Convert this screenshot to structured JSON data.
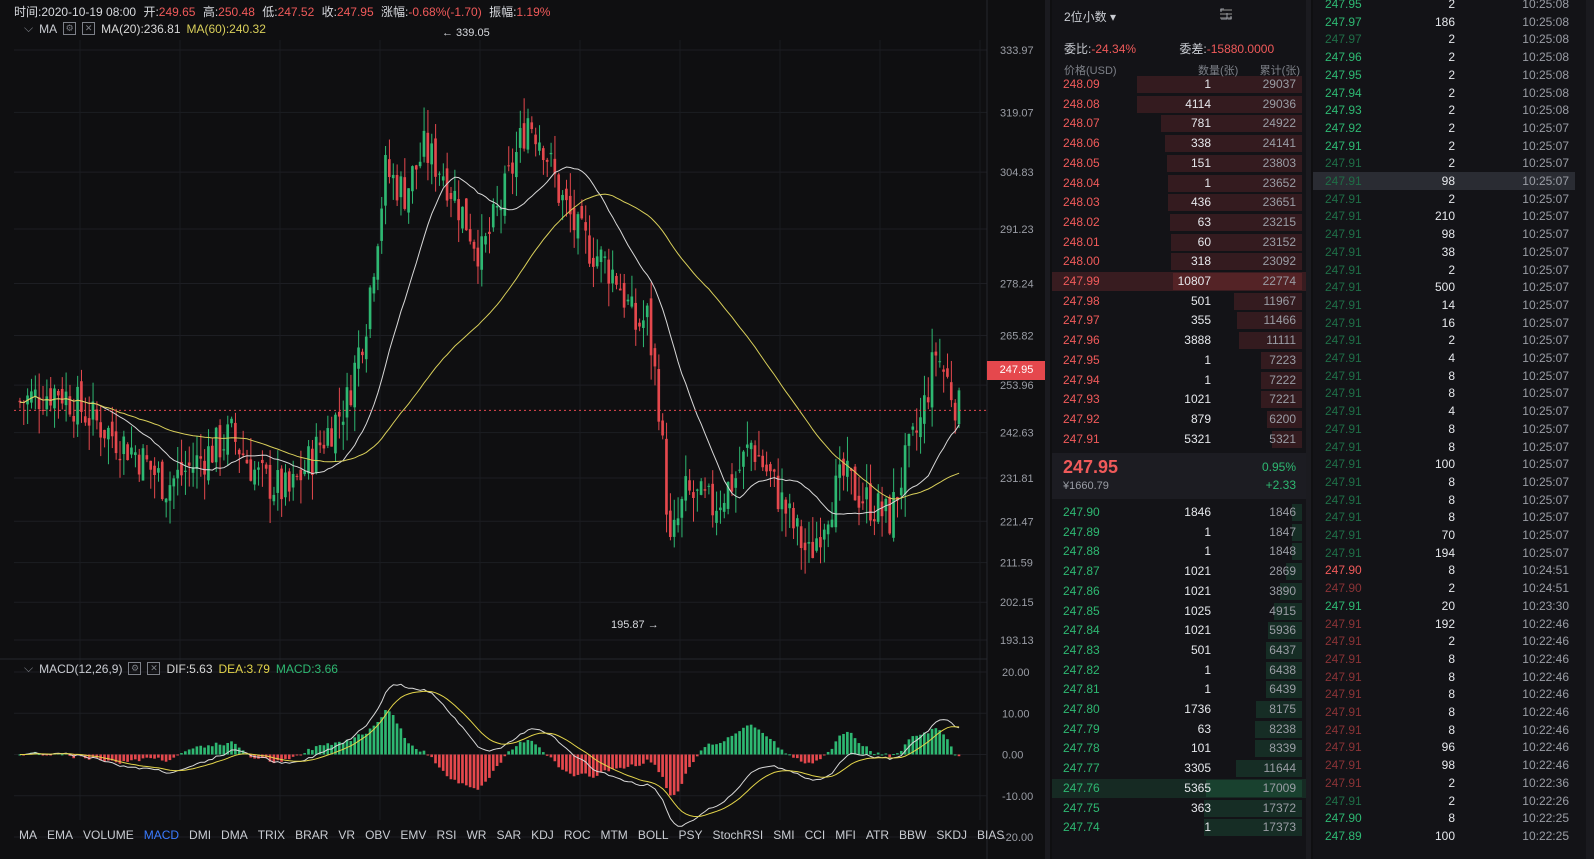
{
  "info": {
    "time_label": "时间:",
    "time": "2020-10-19 08:00",
    "open_label": "开:",
    "open": "249.65",
    "high_label": "高:",
    "high": "250.48",
    "low_label": "低:",
    "low": "247.52",
    "close_label": "收:",
    "close": "247.95",
    "change_label": "涨幅:",
    "change": "-0.68%(-1.70)",
    "amp_label": "振幅:",
    "amp": "1.19%"
  },
  "ma": {
    "label": "MA",
    "ma20": "MA(20):236.81",
    "ma60": "MA(60):240.32"
  },
  "macd": {
    "label": "MACD(12,26,9)",
    "dif": "DIF:5.63",
    "dea": "DEA:3.79",
    "macd": "MACD:3.66"
  },
  "price_axis": [
    "333.97",
    "319.07",
    "304.83",
    "291.23",
    "278.24",
    "265.82",
    "253.96",
    "242.63",
    "231.81",
    "221.47",
    "211.59",
    "202.15",
    "193.13"
  ],
  "macd_axis": [
    "20.00",
    "10.00",
    "0.00",
    "-10.00",
    "-20.00"
  ],
  "current_price_tag": "247.95",
  "annotations": {
    "high": "← 339.05",
    "low": "195.87 →"
  },
  "indicator_tabs": [
    "MA",
    "EMA",
    "VOLUME",
    "MACD",
    "DMI",
    "DMA",
    "TRIX",
    "BRAR",
    "VR",
    "OBV",
    "EMV",
    "RSI",
    "WR",
    "SAR",
    "KDJ",
    "ROC",
    "MTM",
    "BOLL",
    "PSY",
    "StochRSI",
    "SMI",
    "CCI",
    "MFI",
    "ATR",
    "BBW",
    "SKDJ",
    "BIAS"
  ],
  "active_tab": "MACD",
  "colors": {
    "up": "#2eb872",
    "down": "#e5484d",
    "ma20": "#d8d8d8",
    "ma60": "#d9cf5a",
    "dea": "#e3d44a",
    "accent": "#3a7bff"
  },
  "chart_data": {
    "type": "candlestick",
    "title": "",
    "y_range": [
      193.13,
      340
    ],
    "high_mark": 339.05,
    "low_mark": 195.87,
    "last": 247.95,
    "ma20_last": 236.81,
    "ma60_last": 240.32,
    "macd_range": [
      -20,
      20
    ],
    "dif_last": 5.63,
    "dea_last": 3.79,
    "macd_last": 3.66
  },
  "orderbook": {
    "decimals": "2位小数",
    "ratio_label": "委比:",
    "ratio": "-24.34%",
    "diff_label": "委差:",
    "diff": "-15880.0000",
    "col_price": "价格(USD)",
    "col_qty": "数量(张)",
    "col_cum": "累计(张)",
    "asks": [
      {
        "p": "248.09",
        "q": "1",
        "c": "29037"
      },
      {
        "p": "248.08",
        "q": "4114",
        "c": "29036"
      },
      {
        "p": "248.07",
        "q": "781",
        "c": "24922"
      },
      {
        "p": "248.06",
        "q": "338",
        "c": "24141"
      },
      {
        "p": "248.05",
        "q": "151",
        "c": "23803"
      },
      {
        "p": "248.04",
        "q": "1",
        "c": "23652"
      },
      {
        "p": "248.03",
        "q": "436",
        "c": "23651"
      },
      {
        "p": "248.02",
        "q": "63",
        "c": "23215"
      },
      {
        "p": "248.01",
        "q": "60",
        "c": "23152"
      },
      {
        "p": "248.00",
        "q": "318",
        "c": "23092"
      },
      {
        "p": "247.99",
        "q": "10807",
        "c": "22774"
      },
      {
        "p": "247.98",
        "q": "501",
        "c": "11967"
      },
      {
        "p": "247.97",
        "q": "355",
        "c": "11466"
      },
      {
        "p": "247.96",
        "q": "3888",
        "c": "11111"
      },
      {
        "p": "247.95",
        "q": "1",
        "c": "7223"
      },
      {
        "p": "247.94",
        "q": "1",
        "c": "7222"
      },
      {
        "p": "247.93",
        "q": "1021",
        "c": "7221"
      },
      {
        "p": "247.92",
        "q": "879",
        "c": "6200"
      },
      {
        "p": "247.91",
        "q": "5321",
        "c": "5321"
      }
    ],
    "last_price": "247.95",
    "last_cny": "¥1660.79",
    "last_pct": "0.95%",
    "last_chg": "+2.33",
    "bids": [
      {
        "p": "247.90",
        "q": "1846",
        "c": "1846"
      },
      {
        "p": "247.89",
        "q": "1",
        "c": "1847"
      },
      {
        "p": "247.88",
        "q": "1",
        "c": "1848"
      },
      {
        "p": "247.87",
        "q": "1021",
        "c": "2869"
      },
      {
        "p": "247.86",
        "q": "1021",
        "c": "3890"
      },
      {
        "p": "247.85",
        "q": "1025",
        "c": "4915"
      },
      {
        "p": "247.84",
        "q": "1021",
        "c": "5936"
      },
      {
        "p": "247.83",
        "q": "501",
        "c": "6437"
      },
      {
        "p": "247.82",
        "q": "1",
        "c": "6438"
      },
      {
        "p": "247.81",
        "q": "1",
        "c": "6439"
      },
      {
        "p": "247.80",
        "q": "1736",
        "c": "8175"
      },
      {
        "p": "247.79",
        "q": "63",
        "c": "8238"
      },
      {
        "p": "247.78",
        "q": "101",
        "c": "8339"
      },
      {
        "p": "247.77",
        "q": "3305",
        "c": "11644"
      },
      {
        "p": "247.76",
        "q": "5365",
        "c": "17009"
      },
      {
        "p": "247.75",
        "q": "363",
        "c": "17372"
      },
      {
        "p": "247.74",
        "q": "1",
        "c": "17373"
      }
    ]
  },
  "trades": [
    {
      "p": "247.95",
      "q": "2",
      "t": "10:25:08",
      "s": "buy"
    },
    {
      "p": "247.97",
      "q": "186",
      "t": "10:25:08",
      "s": "buy"
    },
    {
      "p": "247.97",
      "q": "2",
      "t": "10:25:08",
      "s": "buy_dim"
    },
    {
      "p": "247.96",
      "q": "2",
      "t": "10:25:08",
      "s": "buy"
    },
    {
      "p": "247.95",
      "q": "2",
      "t": "10:25:08",
      "s": "buy"
    },
    {
      "p": "247.94",
      "q": "2",
      "t": "10:25:08",
      "s": "buy"
    },
    {
      "p": "247.93",
      "q": "2",
      "t": "10:25:08",
      "s": "buy"
    },
    {
      "p": "247.92",
      "q": "2",
      "t": "10:25:07",
      "s": "buy"
    },
    {
      "p": "247.91",
      "q": "2",
      "t": "10:25:07",
      "s": "buy"
    },
    {
      "p": "247.91",
      "q": "2",
      "t": "10:25:07",
      "s": "buy_dim"
    },
    {
      "p": "247.91",
      "q": "98",
      "t": "10:25:07",
      "s": "buy_dim"
    },
    {
      "p": "247.91",
      "q": "2",
      "t": "10:25:07",
      "s": "buy_dim"
    },
    {
      "p": "247.91",
      "q": "210",
      "t": "10:25:07",
      "s": "buy_dim"
    },
    {
      "p": "247.91",
      "q": "98",
      "t": "10:25:07",
      "s": "buy_dim"
    },
    {
      "p": "247.91",
      "q": "38",
      "t": "10:25:07",
      "s": "buy_dim"
    },
    {
      "p": "247.91",
      "q": "2",
      "t": "10:25:07",
      "s": "buy_dim"
    },
    {
      "p": "247.91",
      "q": "500",
      "t": "10:25:07",
      "s": "buy_dim"
    },
    {
      "p": "247.91",
      "q": "14",
      "t": "10:25:07",
      "s": "buy_dim"
    },
    {
      "p": "247.91",
      "q": "16",
      "t": "10:25:07",
      "s": "buy_dim"
    },
    {
      "p": "247.91",
      "q": "2",
      "t": "10:25:07",
      "s": "buy_dim"
    },
    {
      "p": "247.91",
      "q": "4",
      "t": "10:25:07",
      "s": "buy_dim"
    },
    {
      "p": "247.91",
      "q": "8",
      "t": "10:25:07",
      "s": "buy_dim"
    },
    {
      "p": "247.91",
      "q": "8",
      "t": "10:25:07",
      "s": "buy_dim"
    },
    {
      "p": "247.91",
      "q": "4",
      "t": "10:25:07",
      "s": "buy_dim"
    },
    {
      "p": "247.91",
      "q": "8",
      "t": "10:25:07",
      "s": "buy_dim"
    },
    {
      "p": "247.91",
      "q": "8",
      "t": "10:25:07",
      "s": "buy_dim"
    },
    {
      "p": "247.91",
      "q": "100",
      "t": "10:25:07",
      "s": "buy_dim"
    },
    {
      "p": "247.91",
      "q": "8",
      "t": "10:25:07",
      "s": "buy_dim"
    },
    {
      "p": "247.91",
      "q": "8",
      "t": "10:25:07",
      "s": "buy_dim"
    },
    {
      "p": "247.91",
      "q": "8",
      "t": "10:25:07",
      "s": "buy_dim"
    },
    {
      "p": "247.91",
      "q": "70",
      "t": "10:25:07",
      "s": "buy_dim"
    },
    {
      "p": "247.91",
      "q": "194",
      "t": "10:25:07",
      "s": "buy_dim"
    },
    {
      "p": "247.90",
      "q": "8",
      "t": "10:24:51",
      "s": "sell"
    },
    {
      "p": "247.90",
      "q": "2",
      "t": "10:24:51",
      "s": "sell_dim"
    },
    {
      "p": "247.91",
      "q": "20",
      "t": "10:23:30",
      "s": "buy"
    },
    {
      "p": "247.91",
      "q": "192",
      "t": "10:22:46",
      "s": "sell_dim"
    },
    {
      "p": "247.91",
      "q": "2",
      "t": "10:22:46",
      "s": "sell_dim"
    },
    {
      "p": "247.91",
      "q": "8",
      "t": "10:22:46",
      "s": "sell_dim"
    },
    {
      "p": "247.91",
      "q": "8",
      "t": "10:22:46",
      "s": "sell_dim"
    },
    {
      "p": "247.91",
      "q": "8",
      "t": "10:22:46",
      "s": "sell_dim"
    },
    {
      "p": "247.91",
      "q": "8",
      "t": "10:22:46",
      "s": "sell_dim"
    },
    {
      "p": "247.91",
      "q": "8",
      "t": "10:22:46",
      "s": "sell_dim"
    },
    {
      "p": "247.91",
      "q": "96",
      "t": "10:22:46",
      "s": "sell_dim"
    },
    {
      "p": "247.91",
      "q": "98",
      "t": "10:22:46",
      "s": "sell_dim"
    },
    {
      "p": "247.91",
      "q": "2",
      "t": "10:22:36",
      "s": "sell_dim"
    },
    {
      "p": "247.91",
      "q": "2",
      "t": "10:22:26",
      "s": "buy_dim"
    },
    {
      "p": "247.90",
      "q": "8",
      "t": "10:22:25",
      "s": "buy"
    },
    {
      "p": "247.89",
      "q": "100",
      "t": "10:22:25",
      "s": "buy"
    }
  ]
}
